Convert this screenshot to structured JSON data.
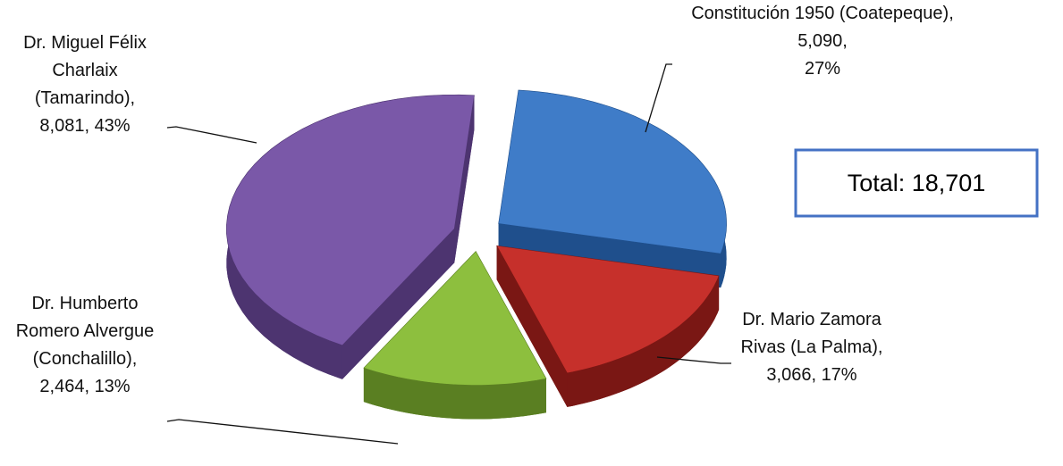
{
  "chart_data": {
    "type": "pie",
    "categories": [
      "Constitución 1950 (Coatepeque),",
      "Dr. Mario Zamora Rivas (La Palma),",
      "Dr. Humberto Romero Alvergue (Conchalillo),",
      "Dr. Miguel Félix Charlaix (Tamarindo),"
    ],
    "values": [
      5090,
      3066,
      2464,
      8081
    ],
    "value_labels": [
      "5,090,",
      "3,066,",
      "2,464,",
      "8,081,"
    ],
    "percents": [
      27,
      17,
      13,
      43
    ],
    "percent_labels": [
      "27%",
      "17%",
      "13%",
      "43%"
    ],
    "colors": [
      "#3f7cc8",
      "#c6302b",
      "#8dbf3e",
      "#7a58a8"
    ],
    "side_colors": [
      "#1f4f8c",
      "#7a1714",
      "#5a7f22",
      "#4d3470"
    ],
    "annotation": "Total: 18,701"
  }
}
